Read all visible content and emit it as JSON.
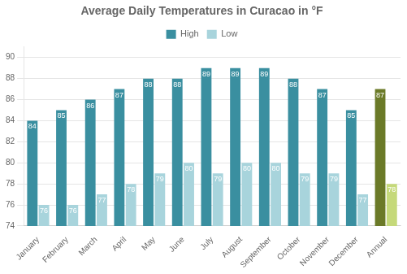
{
  "chart_data": {
    "type": "bar",
    "title": "Average Daily Temperatures in Curacao in °F",
    "categories": [
      "January",
      "February",
      "March",
      "April",
      "May",
      "June",
      "July",
      "August",
      "September",
      "October",
      "November",
      "December",
      "Annual"
    ],
    "series": [
      {
        "name": "High",
        "color": "#3A8FA0",
        "colors": [
          "#3A8FA0",
          "#3A8FA0",
          "#3A8FA0",
          "#3A8FA0",
          "#3A8FA0",
          "#3A8FA0",
          "#3A8FA0",
          "#3A8FA0",
          "#3A8FA0",
          "#3A8FA0",
          "#3A8FA0",
          "#3A8FA0",
          "#6B7A28"
        ],
        "values": [
          84,
          85,
          86,
          87,
          88,
          88,
          89,
          89,
          89,
          88,
          87,
          85,
          87
        ]
      },
      {
        "name": "Low",
        "color": "#A8D4DC",
        "colors": [
          "#A8D4DC",
          "#A8D4DC",
          "#A8D4DC",
          "#A8D4DC",
          "#A8D4DC",
          "#A8D4DC",
          "#A8D4DC",
          "#A8D4DC",
          "#A8D4DC",
          "#A8D4DC",
          "#A8D4DC",
          "#A8D4DC",
          "#C5D97A"
        ],
        "values": [
          76,
          76,
          77,
          78,
          79,
          80,
          79,
          80,
          80,
          79,
          79,
          77,
          78
        ]
      }
    ],
    "ylim": [
      74,
      91
    ],
    "yticks": [
      74,
      76,
      78,
      80,
      82,
      84,
      86,
      88,
      90
    ],
    "grid": true,
    "legend": "top",
    "data_labels": true
  }
}
